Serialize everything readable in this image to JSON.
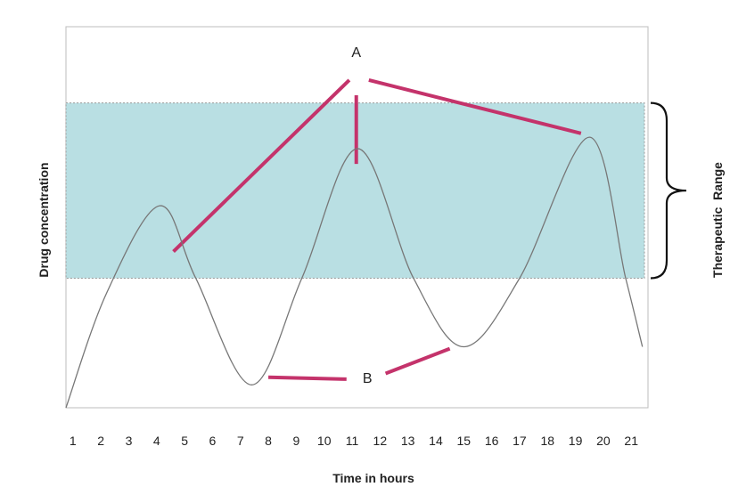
{
  "chart_data": {
    "type": "line",
    "title": "",
    "xlabel": "Time in hours",
    "ylabel": "Drug concentration",
    "x_ticks": [
      "1",
      "2",
      "3",
      "4",
      "5",
      "6",
      "7",
      "8",
      "9",
      "10",
      "11",
      "12",
      "13",
      "14",
      "15",
      "16",
      "17",
      "18",
      "19",
      "20",
      "21"
    ],
    "xlim": [
      0.75,
      21.6
    ],
    "ylim": [
      0,
      10
    ],
    "grid": false,
    "therapeutic_range": {
      "label": "Therapeutic  Range",
      "low": 3.4,
      "high": 8.0,
      "color": "#b9dfe3"
    },
    "series": [
      {
        "name": "",
        "color": "#777777",
        "points": [
          [
            0.75,
            0.0
          ],
          [
            2.2,
            3.0
          ],
          [
            4.1,
            5.3
          ],
          [
            5.4,
            3.4
          ],
          [
            7.4,
            0.6
          ],
          [
            9.2,
            3.4
          ],
          [
            11.2,
            6.8
          ],
          [
            13.2,
            3.4
          ],
          [
            15.0,
            1.6
          ],
          [
            17.0,
            3.4
          ],
          [
            19.5,
            7.1
          ],
          [
            20.8,
            3.4
          ],
          [
            21.4,
            1.6
          ]
        ]
      }
    ],
    "annotations": [
      {
        "label": "A",
        "color": "#c4336b",
        "label_pos": [
          11.15,
          9.3
        ],
        "lines": [
          [
            [
              4.6,
              4.1
            ],
            [
              10.9,
              8.6
            ]
          ],
          [
            [
              11.15,
              6.4
            ],
            [
              11.15,
              8.2
            ]
          ],
          [
            [
              11.6,
              8.6
            ],
            [
              19.2,
              7.2
            ]
          ]
        ]
      },
      {
        "label": "B",
        "color": "#c4336b",
        "label_pos": [
          11.55,
          0.75
        ],
        "lines": [
          [
            [
              8.0,
              0.8
            ],
            [
              10.8,
              0.75
            ]
          ],
          [
            [
              12.2,
              0.9
            ],
            [
              14.5,
              1.55
            ]
          ]
        ]
      }
    ]
  }
}
